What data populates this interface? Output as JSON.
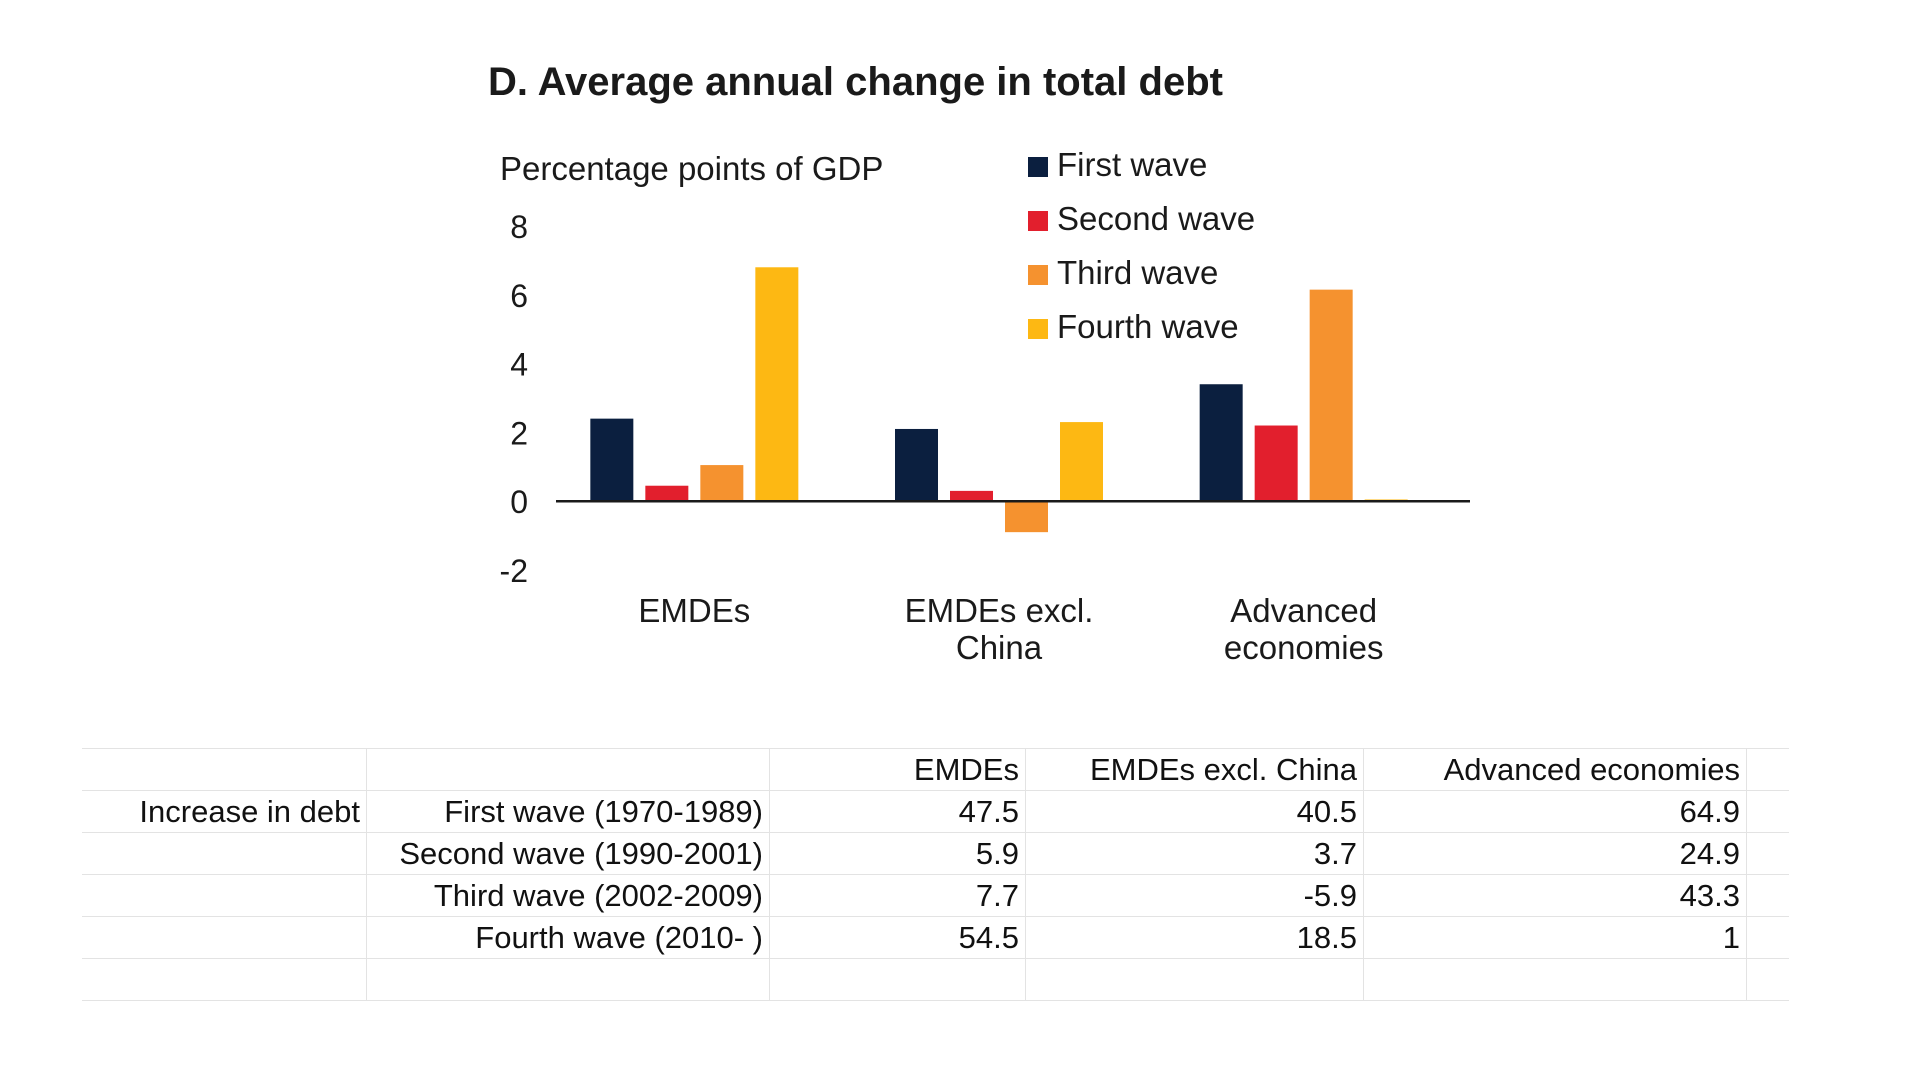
{
  "chart_data": {
    "type": "bar",
    "title": "D. Average annual change in total debt",
    "ylabel": "Percentage points of GDP",
    "xlabel": "",
    "categories": [
      [
        "EMDEs"
      ],
      [
        "EMDEs excl.",
        "China"
      ],
      [
        "Advanced",
        "economies"
      ]
    ],
    "series": [
      {
        "name": "First wave",
        "color": "#0b1f3f",
        "values": [
          2.4,
          2.1,
          3.4
        ]
      },
      {
        "name": "Second wave",
        "color": "#e21f2d",
        "values": [
          0.45,
          0.3,
          2.2
        ]
      },
      {
        "name": "Third wave",
        "color": "#f5922f",
        "values": [
          1.05,
          -0.9,
          6.15
        ]
      },
      {
        "name": "Fourth wave",
        "color": "#fdb813",
        "values": [
          6.8,
          2.3,
          0.05
        ]
      }
    ],
    "yticks": [
      8,
      6,
      4,
      2,
      0,
      -2
    ],
    "ylim": [
      -2,
      8
    ],
    "legend_position": "top-right"
  },
  "table": {
    "header": [
      "",
      "",
      "EMDEs",
      "EMDEs excl. China",
      "Advanced economies",
      ""
    ],
    "rows": [
      [
        "Increase in debt",
        "First wave (1970-1989)",
        "47.5",
        "40.5",
        "64.9",
        ""
      ],
      [
        "",
        "Second wave (1990-2001)",
        "5.9",
        "3.7",
        "24.9",
        ""
      ],
      [
        "",
        "Third wave (2002-2009)",
        "7.7",
        "-5.9",
        "43.3",
        ""
      ],
      [
        "",
        "Fourth wave (2010- )",
        "54.5",
        "18.5",
        "1",
        ""
      ],
      [
        "",
        "",
        "",
        "",
        "",
        ""
      ]
    ]
  }
}
